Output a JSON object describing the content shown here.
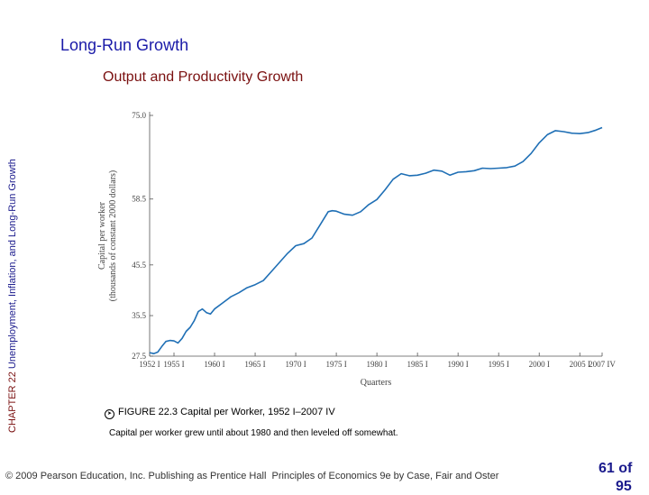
{
  "header": {
    "title": "Long-Run Growth",
    "subtitle": "Output and Productivity Growth"
  },
  "side": {
    "chapter": "CHAPTER 22",
    "text": "Unemployment, Inflation, and Long-Run Growth"
  },
  "figure": {
    "label": "FIGURE 22.3 Capital per Worker, 1952 I–2007 IV",
    "description": "Capital per worker grew until about 1980 and then leveled off somewhat."
  },
  "footer": {
    "copyright": "© 2009 Pearson Education, Inc. Publishing as Prentice Hall",
    "book": "Principles of Economics 9e by Case, Fair and Oster",
    "page": "61 of",
    "page_cont": "95"
  },
  "chart_data": {
    "type": "line",
    "title": "",
    "xlabel": "Quarters",
    "ylabel": "Capital per worker (thousands of constant 2000 dollars)",
    "ylabel_line1": "Capital per worker",
    "ylabel_line2": "(thousands of constant 2000 dollars)",
    "xlim": [
      1952.0,
      2007.75
    ],
    "ylim": [
      27.5,
      75.0
    ],
    "x_ticks": [
      {
        "value": 1952.0,
        "label": "1952 I"
      },
      {
        "value": 1955.0,
        "label": "1955 I"
      },
      {
        "value": 1960.0,
        "label": "1960 I"
      },
      {
        "value": 1965.0,
        "label": "1965 I"
      },
      {
        "value": 1970.0,
        "label": "1970 I"
      },
      {
        "value": 1975.0,
        "label": "1975 I"
      },
      {
        "value": 1980.0,
        "label": "1980 I"
      },
      {
        "value": 1985.0,
        "label": "1985 I"
      },
      {
        "value": 1990.0,
        "label": "1990 I"
      },
      {
        "value": 1995.0,
        "label": "1995 I"
      },
      {
        "value": 2000.0,
        "label": "2000 I"
      },
      {
        "value": 2005.0,
        "label": "2005 I"
      },
      {
        "value": 2007.75,
        "label": "2007 IV"
      }
    ],
    "y_ticks": [
      {
        "value": 27.5,
        "label": "27.5"
      },
      {
        "value": 35.5,
        "label": "35.5"
      },
      {
        "value": 45.5,
        "label": "45.5"
      },
      {
        "value": 58.5,
        "label": "58.5"
      },
      {
        "value": 75.0,
        "label": "75.0"
      }
    ],
    "series": [
      {
        "name": "Capital per worker",
        "x": [
          1952.0,
          1952.5,
          1953.0,
          1953.5,
          1954.0,
          1954.5,
          1955.0,
          1955.5,
          1956.0,
          1956.5,
          1957.0,
          1957.5,
          1958.0,
          1958.5,
          1959.0,
          1959.5,
          1960.0,
          1961.0,
          1962.0,
          1963.0,
          1964.0,
          1965.0,
          1966.0,
          1967.0,
          1968.0,
          1969.0,
          1970.0,
          1971.0,
          1972.0,
          1973.0,
          1974.0,
          1974.5,
          1975.0,
          1976.0,
          1977.0,
          1978.0,
          1979.0,
          1980.0,
          1981.0,
          1982.0,
          1983.0,
          1984.0,
          1985.0,
          1986.0,
          1987.0,
          1988.0,
          1989.0,
          1990.0,
          1991.0,
          1992.0,
          1993.0,
          1994.0,
          1995.0,
          1996.0,
          1997.0,
          1998.0,
          1999.0,
          2000.0,
          2001.0,
          2002.0,
          2003.0,
          2004.0,
          2005.0,
          2006.0,
          2007.0,
          2007.75
        ],
        "values": [
          28.2,
          28.0,
          28.3,
          29.4,
          30.4,
          30.6,
          30.5,
          30.1,
          31.0,
          32.4,
          33.2,
          34.5,
          36.3,
          36.8,
          36.1,
          35.8,
          36.8,
          38.0,
          39.2,
          40.0,
          41.0,
          41.6,
          42.4,
          44.2,
          46.0,
          47.8,
          49.3,
          49.7,
          50.8,
          53.4,
          56.0,
          56.2,
          56.1,
          55.5,
          55.3,
          56.0,
          57.4,
          58.4,
          60.3,
          62.4,
          63.5,
          63.1,
          63.2,
          63.6,
          64.2,
          64.0,
          63.2,
          63.8,
          63.9,
          64.1,
          64.6,
          64.5,
          64.6,
          64.7,
          65.0,
          65.9,
          67.5,
          69.6,
          71.2,
          72.0,
          71.8,
          71.5,
          71.4,
          71.6,
          72.1,
          72.6
        ]
      }
    ]
  }
}
